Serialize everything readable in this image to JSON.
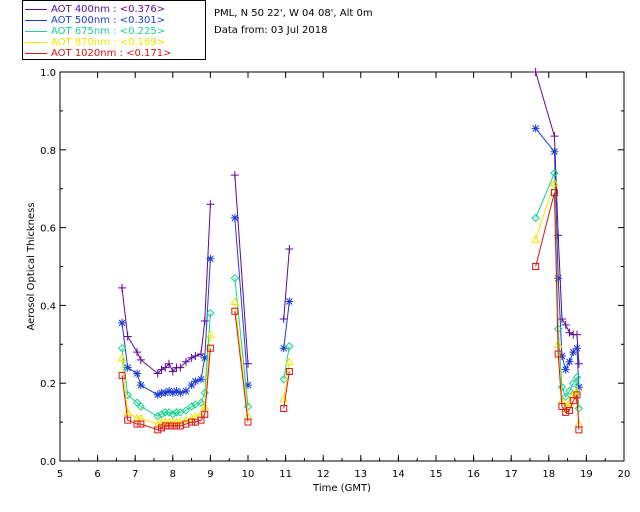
{
  "legend": [
    {
      "label": "AOT  400nm : <0.376>",
      "color": "#5a0a96"
    },
    {
      "label": "AOT  500nm : <0.301>",
      "color": "#1e3cd2"
    },
    {
      "label": "AOT  675nm : <0.225>",
      "color": "#19d28c"
    },
    {
      "label": "AOT  870nm : <0.189>",
      "color": "#f0e600"
    },
    {
      "label": "AOT 1020nm : <0.171>",
      "color": "#dc1414"
    }
  ],
  "station": {
    "line1": "PML, N 50 22', W 04 08', Alt 0m",
    "line2": "Data from: 03 Jul 2018"
  },
  "chart_data": {
    "type": "scatter",
    "title": "",
    "xlabel": "Time (GMT)",
    "ylabel": "Aerosol Optical Thickness",
    "xlim": [
      5,
      20
    ],
    "ylim": [
      0.0,
      1.0
    ],
    "xticks": [
      "5",
      "6",
      "7",
      "8",
      "9",
      "10",
      "11",
      "12",
      "13",
      "14",
      "15",
      "16",
      "17",
      "18",
      "19",
      "20"
    ],
    "yticks": [
      "0.0",
      "0.2",
      "0.4",
      "0.6",
      "0.8",
      "1.0"
    ],
    "grid": false,
    "legend_position": "top-left outside",
    "x": [
      6.65,
      6.8,
      7.05,
      7.15,
      7.6,
      7.7,
      7.8,
      7.9,
      8.0,
      8.1,
      8.2,
      8.35,
      8.5,
      8.6,
      8.75,
      8.85,
      9.0,
      9.15,
      9.65,
      10.0,
      10.95,
      11.1,
      17.65,
      18.15,
      18.25,
      18.35,
      18.45,
      18.55,
      18.65,
      18.75,
      18.8
    ],
    "series": [
      {
        "name": "AOT  400nm : <0.376>",
        "marker": "plus",
        "values": [
          0.445,
          0.32,
          0.28,
          0.26,
          0.225,
          0.235,
          0.24,
          0.25,
          0.23,
          0.24,
          0.24,
          0.255,
          0.265,
          0.27,
          0.275,
          0.36,
          0.66,
          null,
          0.735,
          0.25,
          0.365,
          0.545,
          1.0,
          0.835,
          0.58,
          0.365,
          0.35,
          0.33,
          0.325,
          0.325,
          0.25
        ]
      },
      {
        "name": "AOT  500nm : <0.301>",
        "marker": "asterisk",
        "values": [
          0.355,
          0.24,
          0.225,
          0.195,
          0.17,
          0.175,
          0.175,
          0.18,
          0.175,
          0.18,
          0.175,
          0.18,
          0.195,
          0.205,
          0.21,
          0.265,
          0.52,
          null,
          0.625,
          0.195,
          0.29,
          0.41,
          0.855,
          0.795,
          0.47,
          0.27,
          0.235,
          0.255,
          0.28,
          0.29,
          0.19
        ]
      },
      {
        "name": "AOT  675nm : <0.225>",
        "marker": "diamond",
        "values": [
          0.29,
          0.17,
          0.15,
          0.14,
          0.115,
          0.12,
          0.125,
          0.125,
          0.12,
          0.125,
          0.125,
          0.13,
          0.14,
          0.145,
          0.15,
          0.175,
          0.38,
          null,
          0.47,
          0.14,
          0.21,
          0.295,
          0.625,
          0.74,
          0.34,
          0.19,
          0.165,
          0.18,
          0.2,
          0.215,
          0.135
        ]
      },
      {
        "name": "AOT  870nm : <0.189>",
        "marker": "triangle",
        "values": [
          0.265,
          0.125,
          0.11,
          0.11,
          0.095,
          0.1,
          0.1,
          0.1,
          0.1,
          0.1,
          0.1,
          0.105,
          0.11,
          0.115,
          0.12,
          0.14,
          0.325,
          null,
          0.41,
          0.115,
          0.16,
          0.255,
          0.57,
          0.715,
          0.3,
          0.155,
          0.135,
          0.15,
          0.17,
          0.18,
          0.095
        ]
      },
      {
        "name": "AOT 1020nm : <0.171>",
        "marker": "square",
        "values": [
          0.22,
          0.105,
          0.095,
          0.095,
          0.08,
          0.085,
          0.09,
          0.09,
          0.09,
          0.09,
          0.09,
          0.095,
          0.1,
          0.1,
          0.105,
          0.12,
          0.29,
          null,
          0.385,
          0.1,
          0.135,
          0.23,
          0.5,
          0.69,
          0.275,
          0.14,
          0.125,
          0.13,
          0.155,
          0.17,
          0.08
        ]
      }
    ],
    "colors": [
      "#5a0a96",
      "#1e3cd2",
      "#19d28c",
      "#f0e600",
      "#dc1414"
    ],
    "gap_after_x": 9.15
  }
}
